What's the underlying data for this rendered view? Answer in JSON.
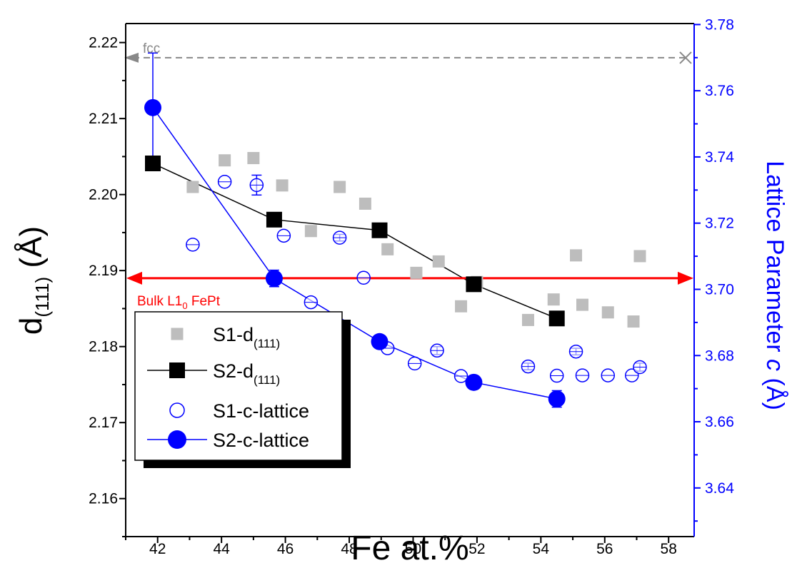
{
  "chart_data": {
    "type": "scatter",
    "xlabel": "Fe at.%",
    "ylabel_left": {
      "main": "d",
      "sub": "(111)",
      "unit": " (Å)"
    },
    "ylabel_right": {
      "pre": "Lattice Parameter ",
      "italic": "c",
      "post": " (Å)"
    },
    "xlim": [
      41,
      58.8
    ],
    "ylim_left": [
      2.155,
      2.2225
    ],
    "ylim_right": [
      3.6253,
      3.7803
    ],
    "x_ticks": [
      42,
      44,
      46,
      48,
      50,
      52,
      54,
      56,
      58
    ],
    "x_tick_labels": [
      "42",
      "44",
      "46",
      "48",
      "50",
      "52",
      "54",
      "56",
      "58"
    ],
    "y_left_ticks": [
      2.16,
      2.17,
      2.18,
      2.19,
      2.2,
      2.21,
      2.22
    ],
    "y_left_tick_labels": [
      "2.16",
      "2.17",
      "2.18",
      "2.19",
      "2.20",
      "2.21",
      "2.22"
    ],
    "y_right_ticks": [
      3.64,
      3.66,
      3.68,
      3.7,
      3.72,
      3.74,
      3.76,
      3.78
    ],
    "y_right_tick_labels": [
      "3.64",
      "3.66",
      "3.68",
      "3.70",
      "3.72",
      "3.74",
      "3.76",
      "3.78"
    ],
    "colors": {
      "gray": "#bdbdbd",
      "black": "#000000",
      "blue": "#0000ff",
      "red": "#ff0000",
      "dash": "#888888"
    },
    "reference_lines": [
      {
        "label": "fcc",
        "axis": "left",
        "y": 2.218,
        "style": "dashed-arrow"
      },
      {
        "label_main": "Bulk L1",
        "label_sub": "0",
        "label_post": " FePt",
        "axis": "left",
        "y": 2.189,
        "style": "double-arrow"
      }
    ],
    "series": [
      {
        "name_main": "S1-d",
        "name_sub": "(111)",
        "marker": "filled-square",
        "color": "gray",
        "axis": "left",
        "line": false,
        "x": [
          43.1,
          44.1,
          45.0,
          45.9,
          46.8,
          47.7,
          48.5,
          49.2,
          50.1,
          50.8,
          51.5,
          52.0,
          53.6,
          54.4,
          55.1,
          55.3,
          56.1,
          56.9,
          57.1
        ],
        "y": [
          2.201,
          2.2045,
          2.2048,
          2.2012,
          2.1952,
          2.201,
          2.1988,
          2.1928,
          2.1897,
          2.1912,
          2.1853,
          2.1885,
          2.1835,
          2.1862,
          2.192,
          2.1855,
          2.1845,
          2.1833,
          2.1919
        ]
      },
      {
        "name_main": "S2-d",
        "name_sub": "(111)",
        "marker": "filled-square",
        "color": "black",
        "axis": "left",
        "line": true,
        "x": [
          41.85,
          45.65,
          48.95,
          51.9,
          54.5
        ],
        "y": [
          2.2041,
          2.1967,
          2.1953,
          2.1882,
          2.1837
        ]
      },
      {
        "name": "S1-c-lattice",
        "marker": "open-circle",
        "color": "blue",
        "axis": "right",
        "line": false,
        "x": [
          43.1,
          44.1,
          45.1,
          45.95,
          46.8,
          47.7,
          48.45,
          49.2,
          50.05,
          50.75,
          51.5,
          53.6,
          54.5,
          55.1,
          55.3,
          56.1,
          56.85,
          57.1
        ],
        "y": [
          3.7135,
          3.7325,
          3.7315,
          3.7162,
          3.6961,
          3.7156,
          3.7035,
          3.6822,
          3.6776,
          3.6815,
          3.6738,
          3.6767,
          3.6739,
          3.6812,
          3.674,
          3.674,
          3.674,
          3.6765
        ],
        "err": [
          0,
          0,
          0.003,
          0,
          0,
          0.001,
          0,
          0,
          0,
          0.0012,
          0,
          0.001,
          0,
          0.001,
          0,
          0,
          0,
          0.0012
        ]
      },
      {
        "name": "S2-c-lattice",
        "marker": "filled-circle",
        "color": "blue",
        "axis": "right",
        "line": true,
        "x": [
          41.85,
          45.65,
          48.95,
          51.9,
          54.5
        ],
        "y": [
          3.7549,
          3.7033,
          3.6842,
          3.6719,
          3.6669
        ],
        "err": [
          0.0165,
          0.0025,
          0.0018,
          0.0017,
          0.0025
        ]
      }
    ]
  }
}
